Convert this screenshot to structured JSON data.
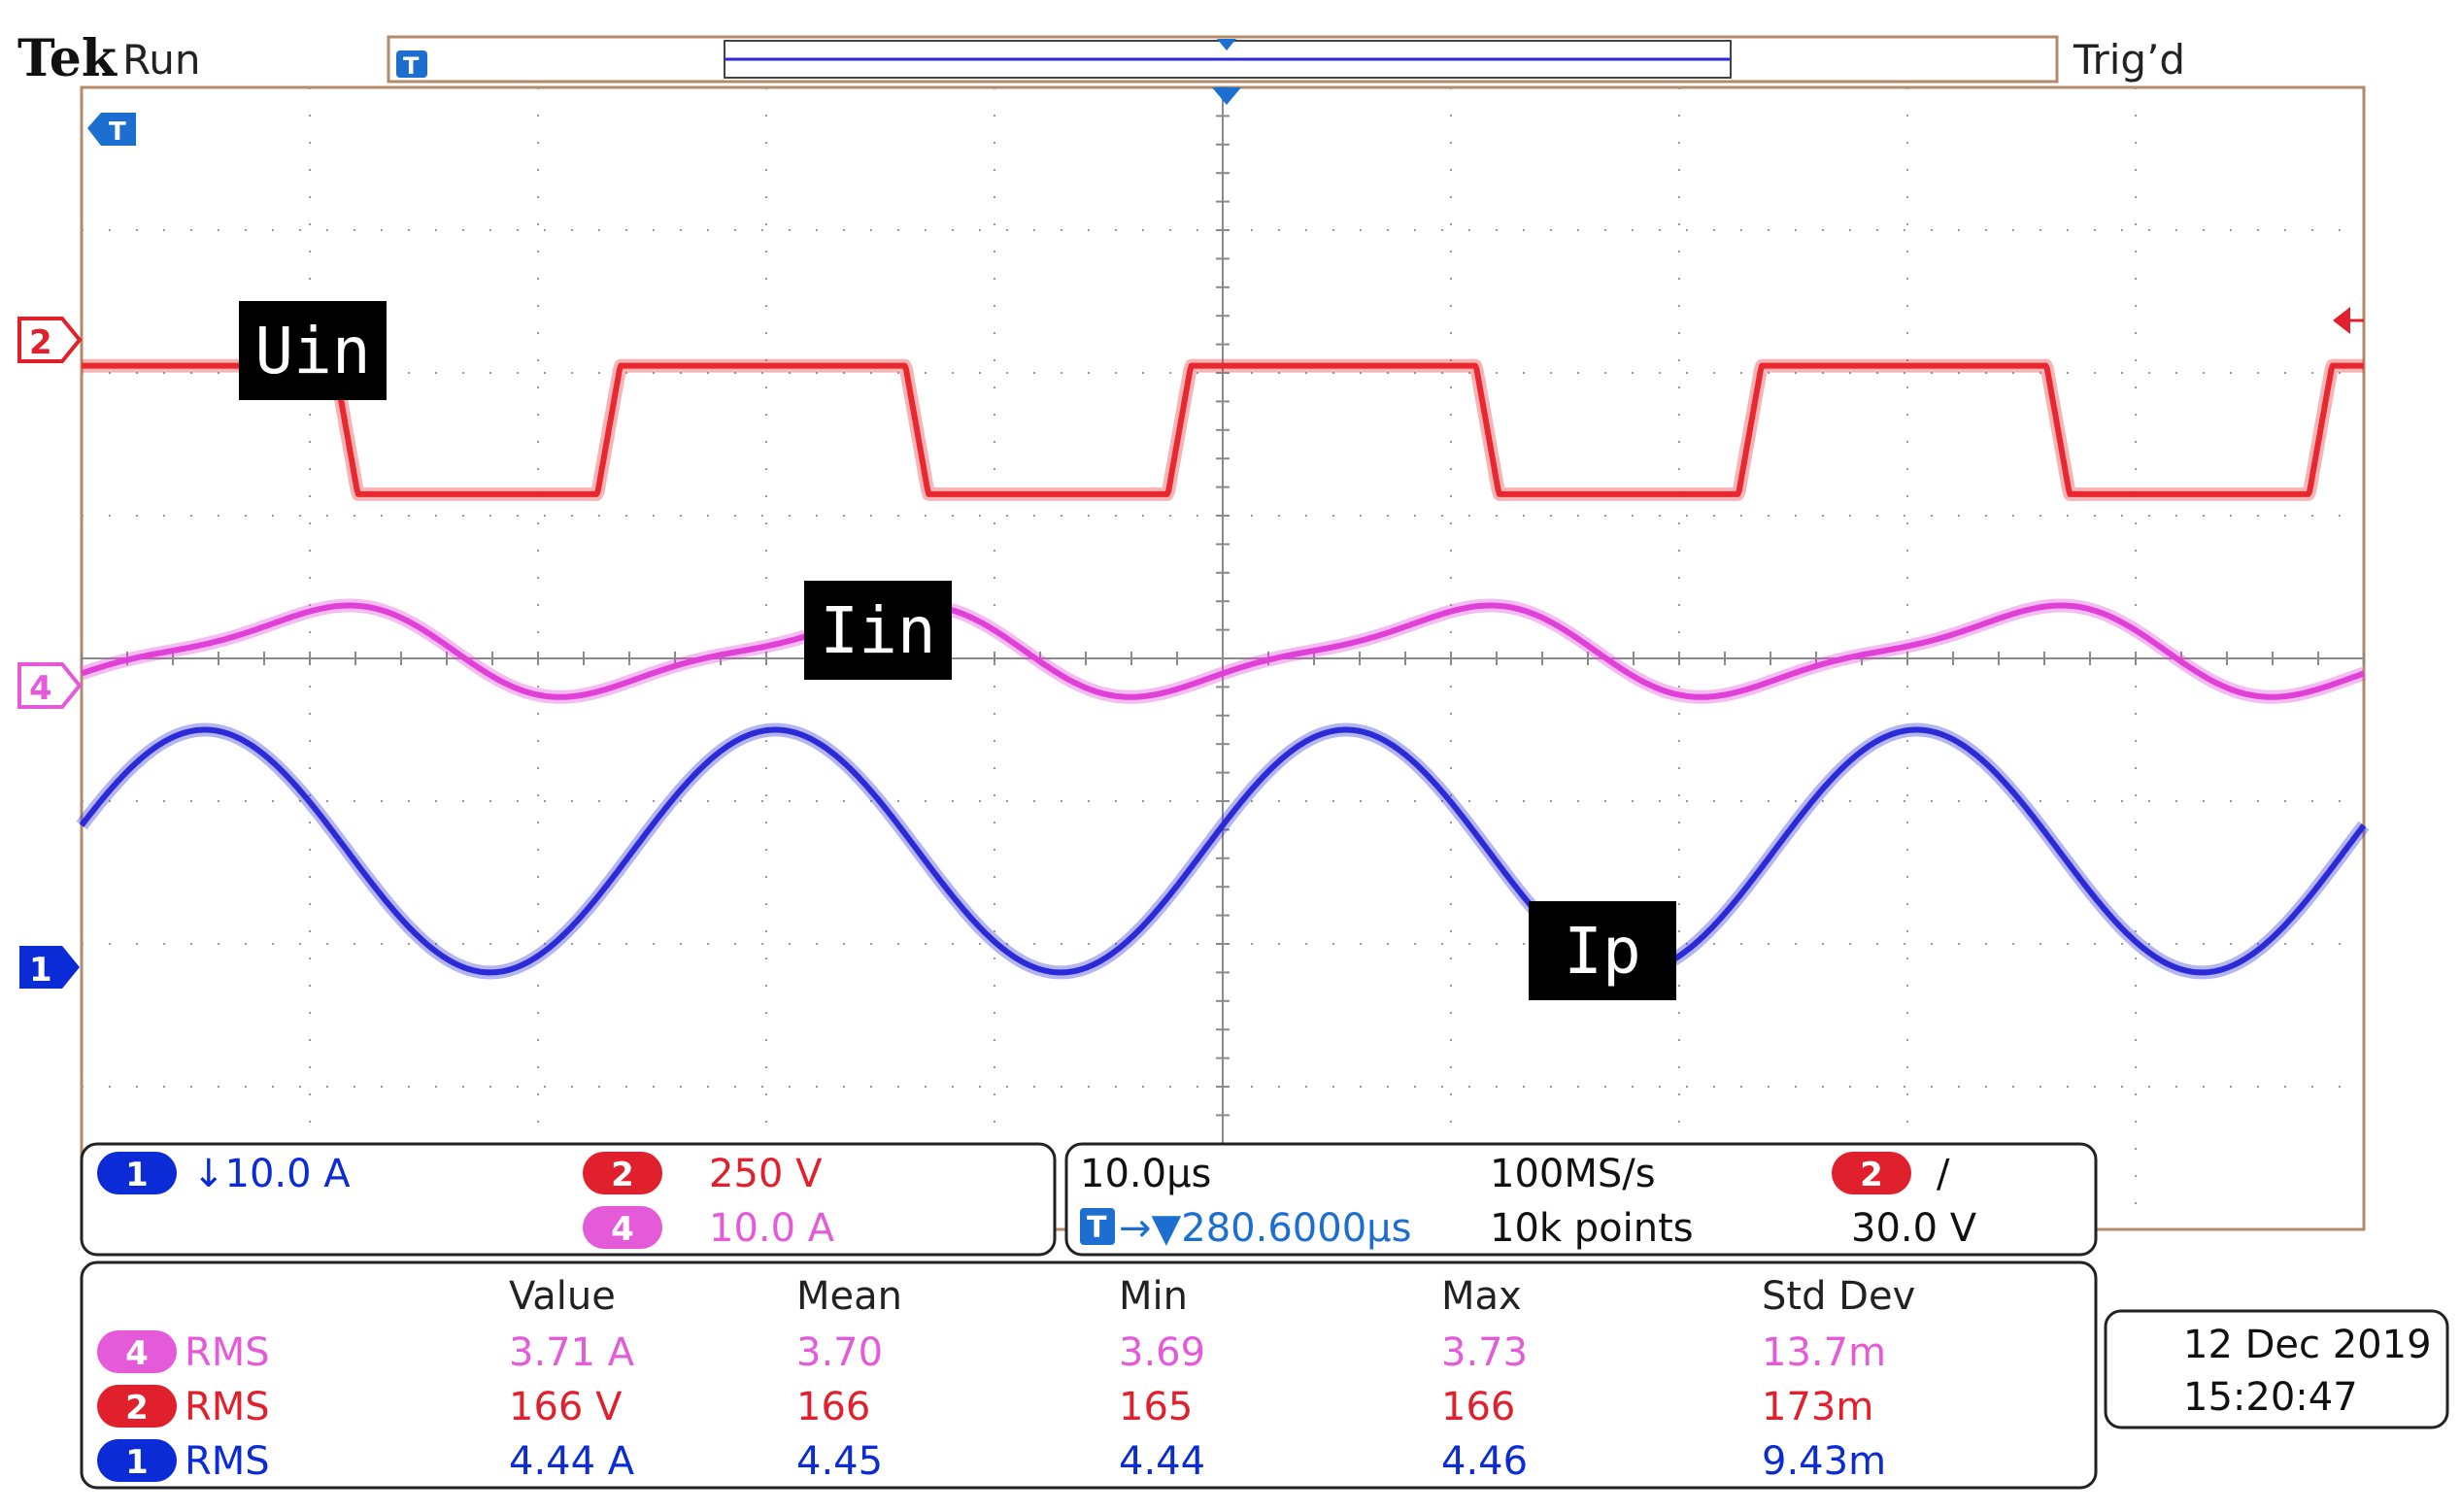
{
  "header": {
    "brand": "Tek",
    "acq_state": "Run",
    "trigger_status": "Trig’d",
    "trigger_marker": "T"
  },
  "chart_data": {
    "type": "line",
    "title": "",
    "xlabel": "",
    "ylabel": "",
    "grid": true,
    "time_per_div_us": 10.0,
    "x_divisions": 10,
    "y_divisions": 8,
    "x_unit": "µs",
    "x_range_us": [
      0,
      100
    ],
    "trace_labels": [
      "Uin",
      "Iin",
      "Ip"
    ],
    "series": [
      {
        "name": "Uin",
        "channel": "2",
        "color": "#e8282e",
        "shape": "square",
        "period_us": 25,
        "duty": 0.5,
        "amplitude_div": 0.9,
        "offset_div": 1.6,
        "high_start_us": [
          -1.4,
          22.6,
          47.6,
          72.6,
          97.6
        ],
        "rise_us": 1.0,
        "fall_us": 1.0
      },
      {
        "name": "Iin",
        "channel": "4",
        "color": "#e040d8",
        "shape": "ripple",
        "period_us": 25,
        "min_div": -0.3,
        "max_div": 0.4,
        "offset_div": 0.0
      },
      {
        "name": "Ip",
        "channel": "1",
        "color": "#2a2ad8",
        "shape": "sine",
        "period_us": 25,
        "amplitude_div": 0.85,
        "offset_div": -1.35,
        "peak_us": [
          5.4,
          30.4,
          55.4,
          80.4
        ]
      }
    ]
  },
  "channels": {
    "ch1": {
      "id": "1",
      "scale": "↓10.0 A",
      "color": "#0a2bd6"
    },
    "ch2": {
      "id": "2",
      "scale": "250 V",
      "color": "#e0202c"
    },
    "ch4": {
      "id": "4",
      "scale": "10.0 A",
      "color": "#e45ad9"
    }
  },
  "timebase": {
    "scale": "10.0µs",
    "position": "→▼280.6000µs",
    "sample_rate": "100MS/s",
    "record_length": "10k points",
    "trigger_channel": "2",
    "trigger_slope": "∕",
    "trigger_level": "30.0 V"
  },
  "measurements": {
    "headers": [
      "Value",
      "Mean",
      "Min",
      "Max",
      "Std Dev"
    ],
    "rows": [
      {
        "channel": "4",
        "type": "RMS",
        "value": "3.71 A",
        "mean": "3.70",
        "min": "3.69",
        "max": "3.73",
        "std": "13.7m"
      },
      {
        "channel": "2",
        "type": "RMS",
        "value": "166 V",
        "mean": "166",
        "min": "165",
        "max": "166",
        "std": "173m"
      },
      {
        "channel": "1",
        "type": "RMS",
        "value": "4.44 A",
        "mean": "4.45",
        "min": "4.44",
        "max": "4.46",
        "std": "9.43m"
      }
    ]
  },
  "datetime": {
    "date": "12 Dec  2019",
    "time": "15:20:47"
  }
}
